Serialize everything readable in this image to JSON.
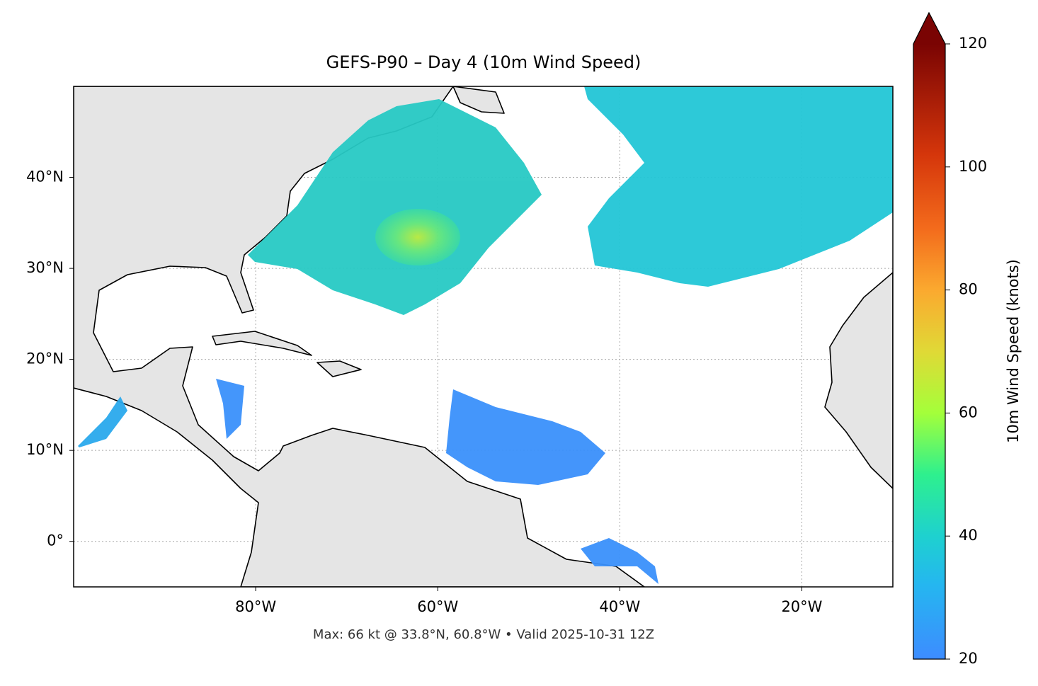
{
  "title": "GEFS-P90 – Day 4 (10m Wind Speed)",
  "footer": "Max: 66 kt @ 33.8°N, 60.8°W • Valid 2025-10-31 12Z",
  "map": {
    "lon_range": [
      -100,
      -10
    ],
    "lat_range": [
      -5,
      50
    ],
    "lon_ticks": [
      {
        "value": -80,
        "label": "80°W"
      },
      {
        "value": -60,
        "label": "60°W"
      },
      {
        "value": -40,
        "label": "40°W"
      },
      {
        "value": -20,
        "label": "20°W"
      }
    ],
    "lat_ticks": [
      {
        "value": 0,
        "label": "0°"
      },
      {
        "value": 10,
        "label": "10°N"
      },
      {
        "value": 20,
        "label": "20°N"
      },
      {
        "value": 30,
        "label": "30°N"
      },
      {
        "value": 40,
        "label": "40°N"
      }
    ]
  },
  "colorbar": {
    "label": "10m Wind Speed (knots)",
    "range": [
      20,
      120
    ],
    "ticks": [
      20,
      40,
      60,
      80,
      100,
      120
    ]
  }
}
